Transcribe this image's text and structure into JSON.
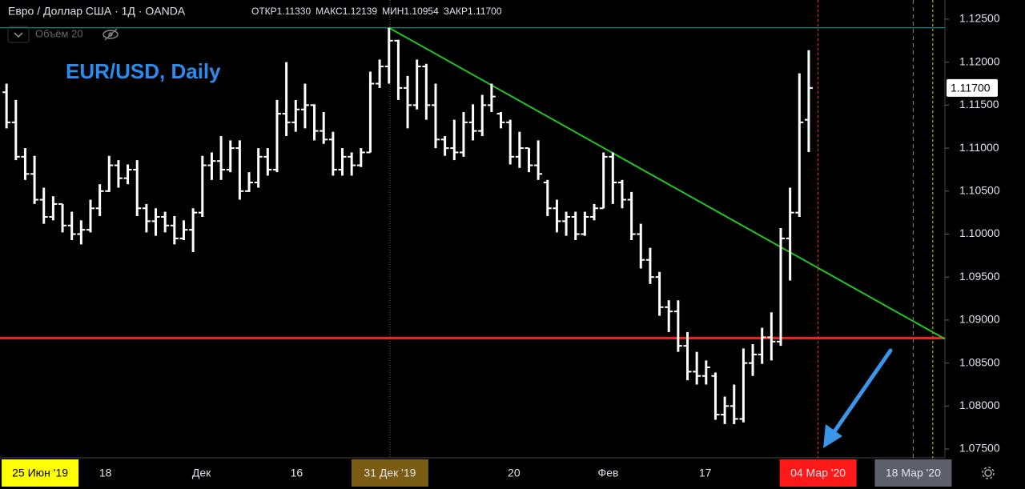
{
  "header": {
    "symbol": "Евро / Доллар США · 1Д · OANDA",
    "open_label": "ОТКР",
    "open": "1.11330",
    "high_label": "МАКС",
    "high": "1.12139",
    "low_label": "МИН",
    "low": "1.10954",
    "close_label": "ЗАКР",
    "close": "1.11700",
    "indicator": "Объём 20"
  },
  "chart_data": {
    "type": "ohlc",
    "annotation": "EUR/USD, Daily",
    "color": "#ffffff",
    "ohlc": [
      [
        1.1165,
        1.1175,
        1.1123,
        1.113
      ],
      [
        1.113,
        1.1156,
        1.1086,
        1.109
      ],
      [
        1.109,
        1.11,
        1.1063,
        1.107
      ],
      [
        1.107,
        1.1091,
        1.1035,
        1.104
      ],
      [
        1.104,
        1.1054,
        1.1012,
        1.102
      ],
      [
        1.102,
        1.1044,
        1.1016,
        1.1035
      ],
      [
        1.1035,
        1.1035,
        1.1002,
        1.101
      ],
      [
        1.101,
        1.1026,
        1.0993,
        1.1
      ],
      [
        1.1,
        1.1016,
        1.0988,
        1.1005
      ],
      [
        1.1005,
        1.104,
        1.1002,
        1.103
      ],
      [
        1.103,
        1.1058,
        1.1021,
        1.105
      ],
      [
        1.105,
        1.1091,
        1.1049,
        1.108
      ],
      [
        1.108,
        1.1086,
        1.1054,
        1.1065
      ],
      [
        1.1065,
        1.1081,
        1.1058,
        1.1075
      ],
      [
        1.1075,
        1.1086,
        1.1021,
        1.103
      ],
      [
        1.103,
        1.1035,
        1.1002,
        1.1015
      ],
      [
        1.1015,
        1.103,
        1.0998,
        1.102
      ],
      [
        1.102,
        1.1026,
        1.1002,
        1.101
      ],
      [
        1.101,
        1.1021,
        1.0988,
        1.0995
      ],
      [
        1.0995,
        1.1016,
        1.0993,
        1.1005
      ],
      [
        1.1005,
        1.103,
        1.0979,
        1.1025
      ],
      [
        1.1025,
        1.1091,
        1.102,
        1.108
      ],
      [
        1.108,
        1.1095,
        1.1063,
        1.1085
      ],
      [
        1.1085,
        1.1114,
        1.1063,
        1.1075
      ],
      [
        1.1075,
        1.1109,
        1.1072,
        1.11
      ],
      [
        1.11,
        1.1109,
        1.104,
        1.105
      ],
      [
        1.105,
        1.1072,
        1.1049,
        1.106
      ],
      [
        1.106,
        1.11,
        1.1054,
        1.109
      ],
      [
        1.109,
        1.11,
        1.1068,
        1.1075
      ],
      [
        1.1075,
        1.1156,
        1.1072,
        1.114
      ],
      [
        1.114,
        1.12,
        1.1114,
        1.113
      ],
      [
        1.113,
        1.1156,
        1.1119,
        1.1145
      ],
      [
        1.1145,
        1.1175,
        1.1123,
        1.115
      ],
      [
        1.115,
        1.1151,
        1.1109,
        1.112
      ],
      [
        1.112,
        1.1142,
        1.1105,
        1.111
      ],
      [
        1.111,
        1.1119,
        1.1068,
        1.1075
      ],
      [
        1.1075,
        1.11,
        1.1068,
        1.109
      ],
      [
        1.109,
        1.1095,
        1.1068,
        1.108
      ],
      [
        1.108,
        1.11,
        1.1078,
        1.1095
      ],
      [
        1.1095,
        1.1189,
        1.1095,
        1.1175
      ],
      [
        1.1175,
        1.1203,
        1.117,
        1.1195
      ],
      [
        1.1195,
        1.124,
        1.1175,
        1.1225
      ],
      [
        1.1225,
        1.1226,
        1.1156,
        1.117
      ],
      [
        1.117,
        1.1184,
        1.1123,
        1.115
      ],
      [
        1.115,
        1.1203,
        1.1145,
        1.1195
      ],
      [
        1.1195,
        1.1198,
        1.1133,
        1.115
      ],
      [
        1.115,
        1.1175,
        1.11,
        1.111
      ],
      [
        1.111,
        1.1114,
        1.1091,
        1.11
      ],
      [
        1.11,
        1.1133,
        1.1086,
        1.1095
      ],
      [
        1.1095,
        1.1142,
        1.109,
        1.113
      ],
      [
        1.113,
        1.1151,
        1.1109,
        1.112
      ],
      [
        1.112,
        1.1162,
        1.1114,
        1.115
      ],
      [
        1.115,
        1.1175,
        1.1142,
        1.116
      ],
      [
        1.114,
        1.1142,
        1.1123,
        1.113
      ],
      [
        1.113,
        1.1133,
        1.1081,
        1.109
      ],
      [
        1.109,
        1.1119,
        1.1077,
        1.11
      ],
      [
        1.11,
        1.11,
        1.1072,
        1.108
      ],
      [
        1.108,
        1.1109,
        1.1063,
        1.107
      ],
      [
        1.106,
        1.1063,
        1.1021,
        1.103
      ],
      [
        1.103,
        1.104,
        1.1002,
        1.1015
      ],
      [
        1.1015,
        1.1026,
        1.0998,
        1.102
      ],
      [
        1.102,
        1.1026,
        1.0993,
        1.1
      ],
      [
        1.1,
        1.1026,
        1.0998,
        1.102
      ],
      [
        1.102,
        1.1035,
        1.1016,
        1.103
      ],
      [
        1.103,
        1.1095,
        1.103,
        1.109
      ],
      [
        1.109,
        1.1095,
        1.1035,
        1.106
      ],
      [
        1.106,
        1.1063,
        1.103,
        1.104
      ],
      [
        1.104,
        1.1049,
        1.0993,
        1.1
      ],
      [
        1.1,
        1.1012,
        1.096,
        1.097
      ],
      [
        1.097,
        1.0984,
        1.0942,
        1.095
      ],
      [
        1.095,
        1.0956,
        1.0905,
        1.0915
      ],
      [
        1.0915,
        1.0923,
        1.0886,
        1.091
      ],
      [
        1.091,
        1.0923,
        1.0863,
        1.087
      ],
      [
        1.087,
        1.0886,
        1.083,
        1.084
      ],
      [
        1.084,
        1.0863,
        1.0825,
        1.0835
      ],
      [
        1.0835,
        1.0853,
        1.0825,
        1.0845
      ],
      [
        1.0835,
        1.0839,
        1.0784,
        1.079
      ],
      [
        1.079,
        1.0811,
        1.0779,
        1.08
      ],
      [
        1.08,
        1.0825,
        1.0779,
        1.0785
      ],
      [
        1.0785,
        1.0867,
        1.0781,
        1.085
      ],
      [
        1.085,
        1.0872,
        1.0835,
        1.086
      ],
      [
        1.086,
        1.0891,
        1.0849,
        1.088
      ],
      [
        1.088,
        1.0909,
        1.0853,
        1.0875
      ],
      [
        1.0875,
        1.1007,
        1.087,
        1.0995
      ],
      [
        1.0995,
        1.1054,
        1.0946,
        1.1025
      ],
      [
        1.1025,
        1.1187,
        1.102,
        1.113
      ],
      [
        1.1133,
        1.12139,
        1.10954,
        1.117
      ]
    ],
    "xlim": [
      -0.7,
      100.6
    ],
    "ylim": [
      1.07398,
      1.12723
    ],
    "yticks": [
      {
        "value": 1.125,
        "label": "1.12500"
      },
      {
        "value": 1.12,
        "label": "1.12000"
      },
      {
        "value": 1.115,
        "label": "1.11500"
      },
      {
        "value": 1.11,
        "label": "1.11000"
      },
      {
        "value": 1.105,
        "label": "1.10500"
      },
      {
        "value": 1.1,
        "label": "1.10000"
      },
      {
        "value": 1.095,
        "label": "1.09500"
      },
      {
        "value": 1.09,
        "label": "1.09000"
      },
      {
        "value": 1.085,
        "label": "1.08500"
      },
      {
        "value": 1.08,
        "label": "1.08000"
      },
      {
        "value": 1.075,
        "label": "1.07500"
      }
    ],
    "xticks": [
      {
        "value": 3.6,
        "label": "25 Июн '19",
        "highlight": "#ffff00"
      },
      {
        "value": 10.6,
        "label": "18"
      },
      {
        "value": 20.9,
        "label": "Дек"
      },
      {
        "value": 31.1,
        "label": "16"
      },
      {
        "value": 41.1,
        "label": "31 Дек '19",
        "highlight": "#7a5c12"
      },
      {
        "value": 54.4,
        "label": "20"
      },
      {
        "value": 64.5,
        "label": "Фев"
      },
      {
        "value": 74.9,
        "label": "17"
      },
      {
        "value": 87,
        "label": "04 Мар '20",
        "highlight": "#ff1a1a"
      },
      {
        "value": 97.2,
        "label": "18 Мар '20",
        "highlight": "#5d606b"
      }
    ],
    "last_price": {
      "value": 1.117,
      "label": "1.11700"
    },
    "hlines": [
      {
        "value": 1.124,
        "color": "#26a6a6",
        "width": 1
      },
      {
        "value": 1.0879,
        "color": "#ff1a1a",
        "width": 3
      }
    ],
    "trendline": {
      "x": [
        41,
        100.6
      ],
      "y": [
        1.124,
        1.0878
      ],
      "color": "#22c322"
    },
    "vlines": [
      {
        "x": 41.1,
        "color": "#8a6a1a",
        "dash": "1 2"
      },
      {
        "x": 87,
        "color": "#ff2b2b",
        "dash": "3 3"
      },
      {
        "x": 97.2,
        "color": "#888888",
        "dash": "5 4"
      },
      {
        "x": 99.3,
        "color": "#e6d200",
        "dash": "3 3"
      }
    ]
  }
}
